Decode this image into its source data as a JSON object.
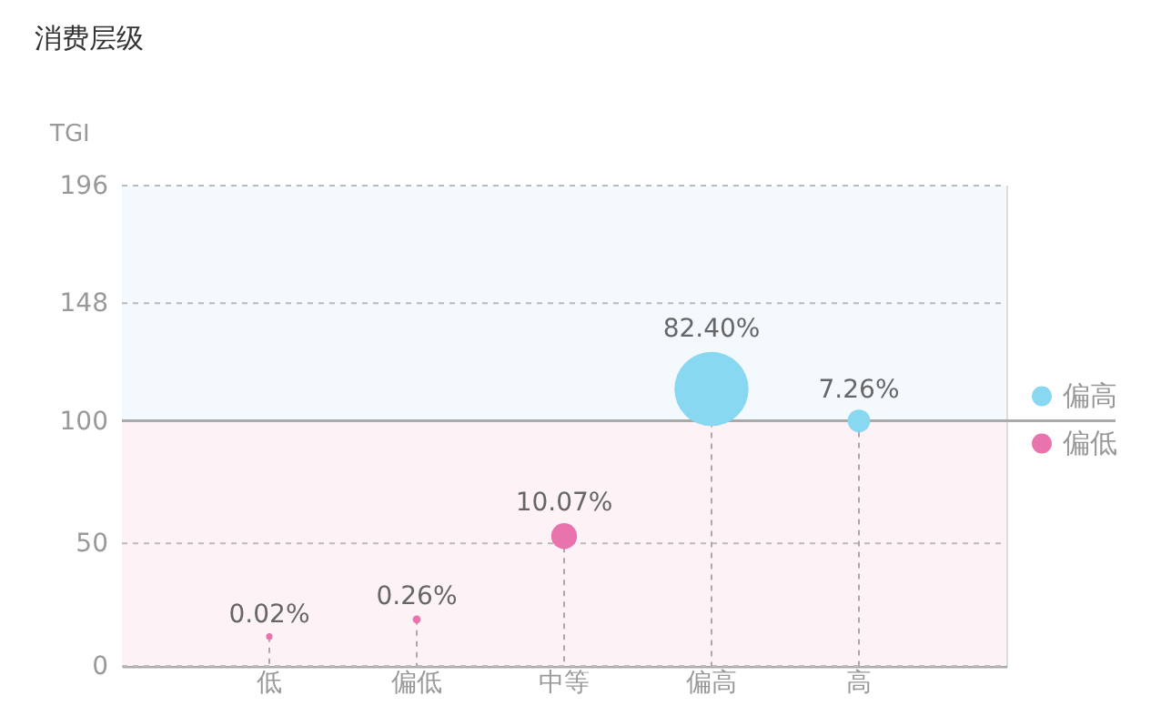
{
  "chart_data": {
    "type": "bubble",
    "title": "消费层级",
    "ylabel": "TGI",
    "categories": [
      "低",
      "偏低",
      "中等",
      "偏高",
      "高"
    ],
    "series": [
      {
        "name": "偏高",
        "color": "#87d8f0",
        "values": [
          null,
          null,
          null,
          113,
          100
        ],
        "sizes": [
          null,
          null,
          null,
          1,
          0.093
        ]
      },
      {
        "name": "偏低",
        "color": "#e973ad",
        "values": [
          12,
          19,
          53,
          null,
          null
        ],
        "sizes": [
          0.0076,
          0.0118,
          0.121,
          null,
          null
        ]
      }
    ],
    "annotations": [
      {
        "text": "0.02%",
        "x": "低",
        "y": 12
      },
      {
        "text": "0.26%",
        "x": "偏低",
        "y": 19
      },
      {
        "text": "10.07%",
        "x": "中等",
        "y": 53
      },
      {
        "text": "82.40%",
        "x": "偏高",
        "y": 113
      },
      {
        "text": "7.26%",
        "x": "高",
        "y": 100
      }
    ],
    "ylim": [
      0,
      196
    ],
    "yticks": [
      0,
      50,
      100,
      148,
      196
    ],
    "bands": [
      {
        "axis": "y",
        "from": 100,
        "to": 196,
        "color": "#f3f9fd"
      },
      {
        "axis": "y",
        "from": 0,
        "to": 100,
        "color": "#fdf2f6"
      }
    ],
    "ref_lines": [
      {
        "axis": "y",
        "value": 100,
        "color": "#aaaaaa"
      }
    ],
    "grid": "y",
    "legend": "right",
    "marker": "circle"
  }
}
